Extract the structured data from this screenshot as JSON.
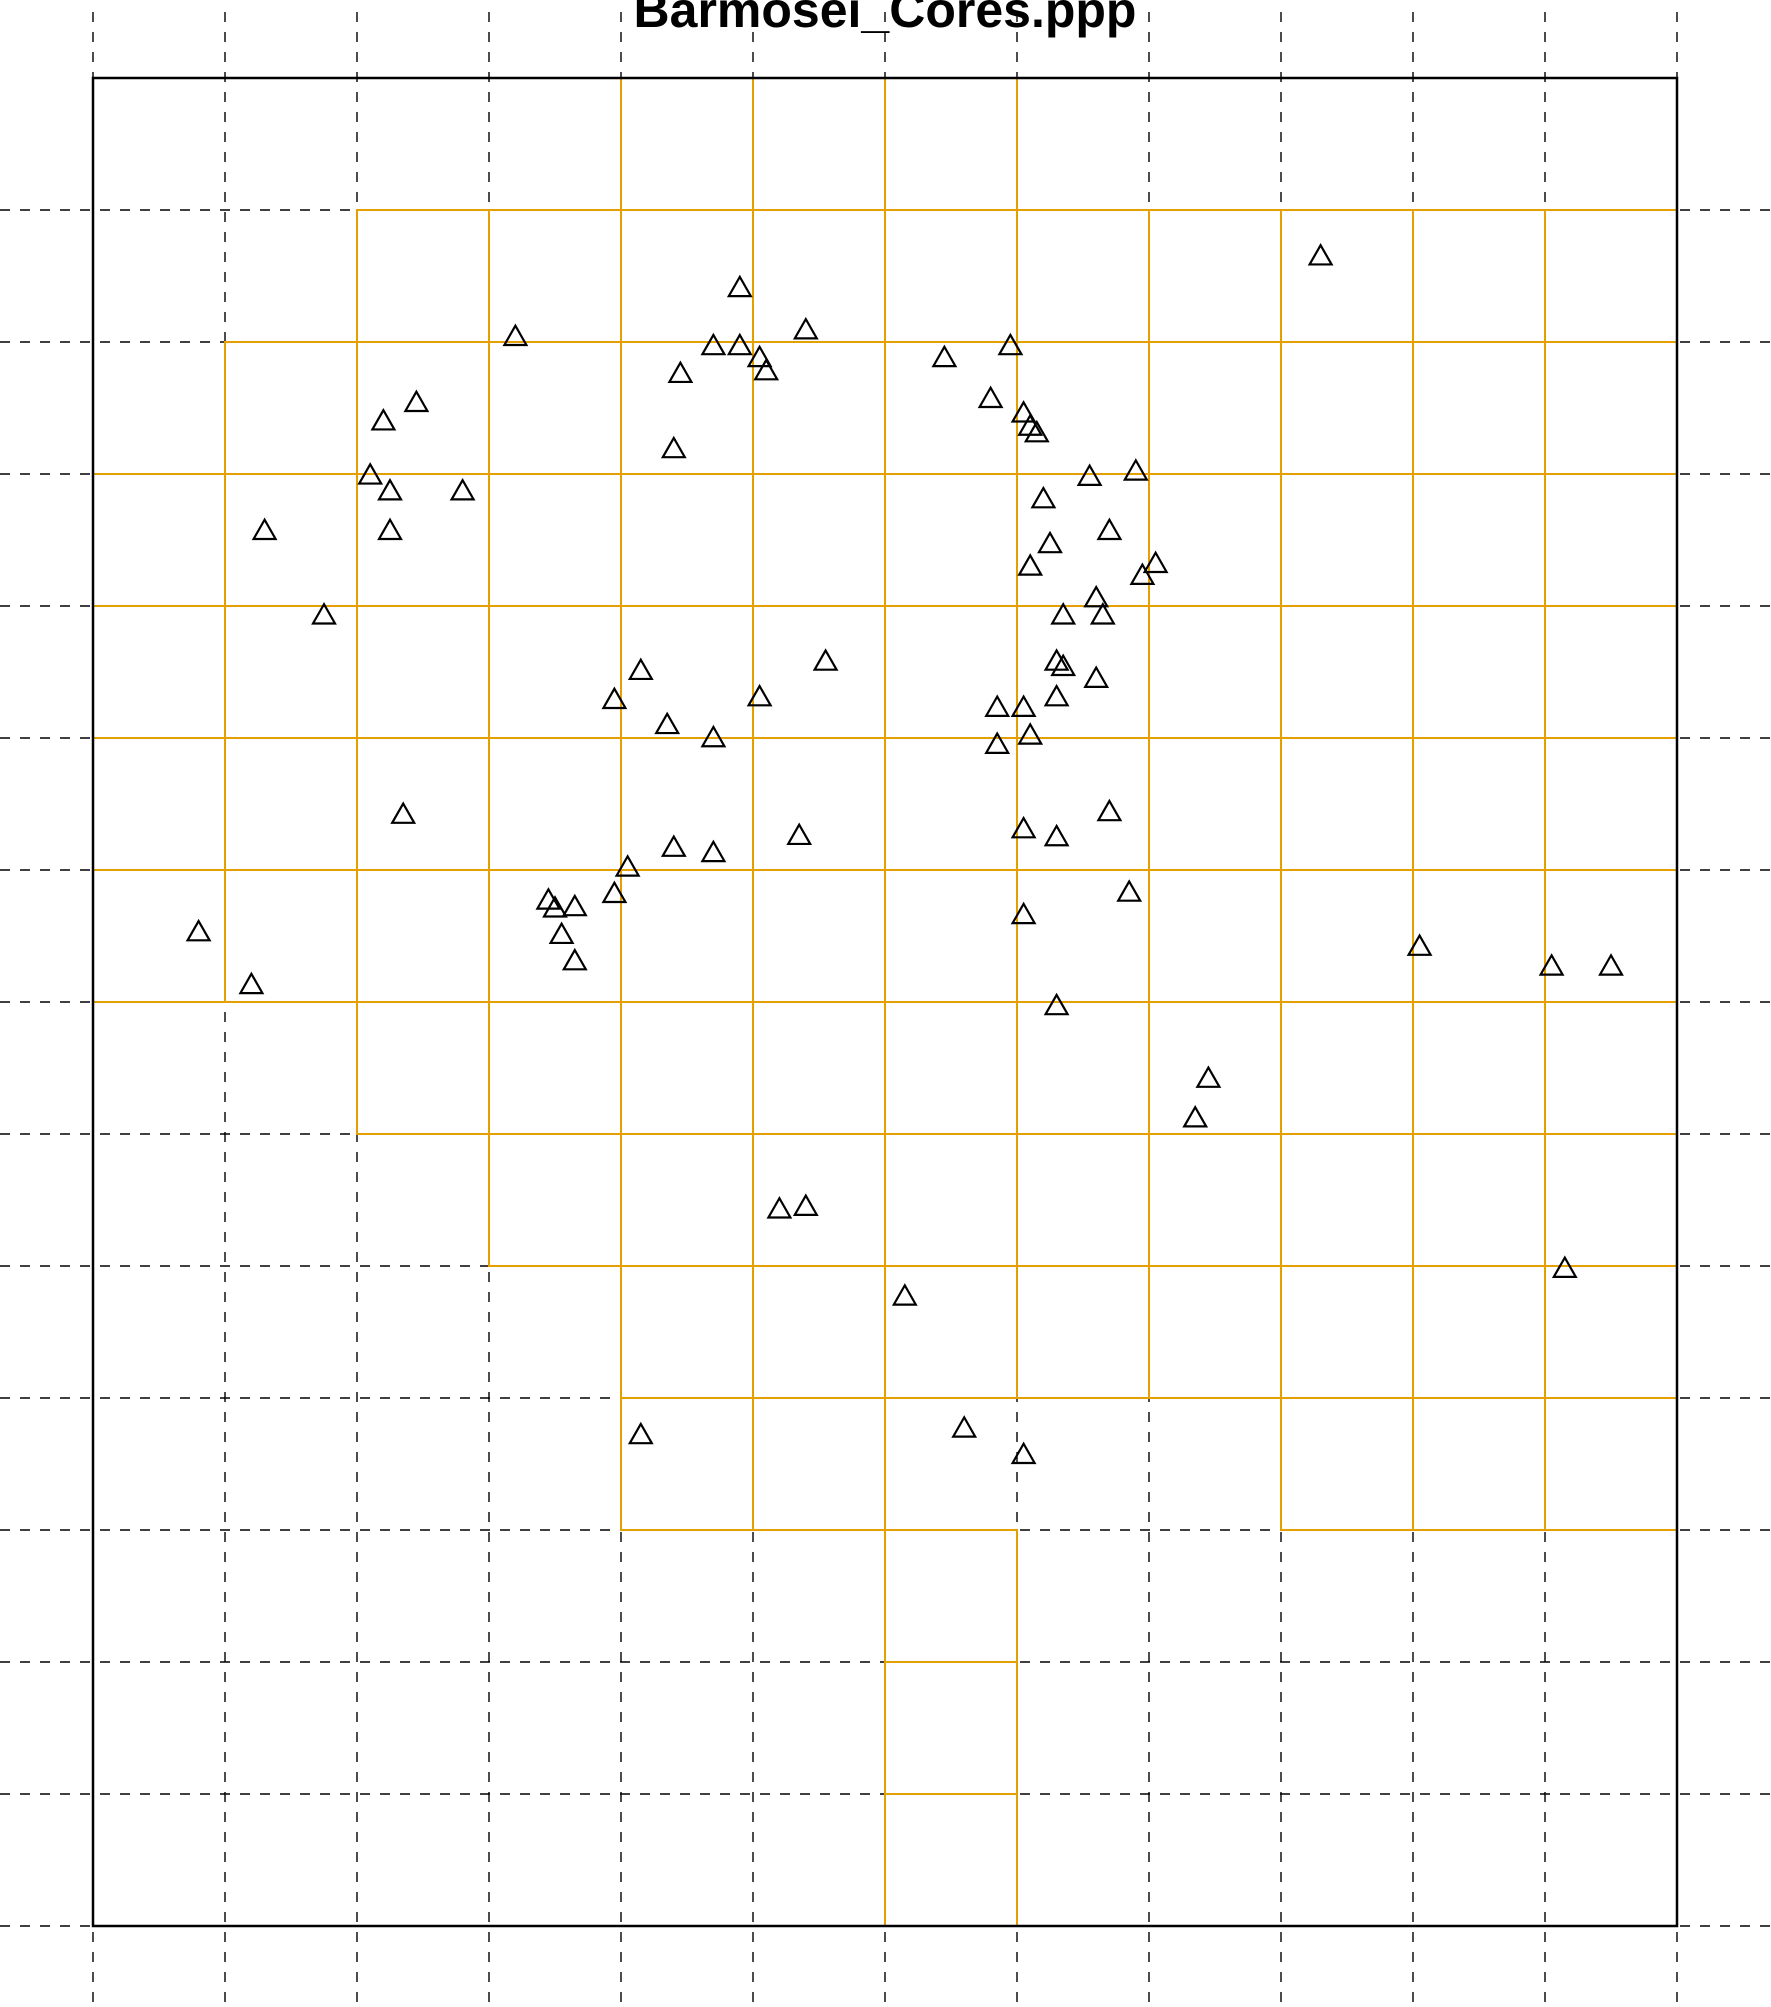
{
  "chart_data": {
    "type": "scatter",
    "title": "Barmosei_Cores.ppp",
    "xlabel": "",
    "ylabel": "",
    "xlim": [
      0,
      12
    ],
    "ylim": [
      0,
      14
    ],
    "grid": true,
    "marker": "triangle",
    "colors": {
      "points": "#000000",
      "quadrats": "#E69F00",
      "grid": "#000000",
      "window": "#000000"
    },
    "quadrats": [
      [
        4,
        13
      ],
      [
        5,
        13
      ],
      [
        6,
        13
      ],
      [
        2,
        12
      ],
      [
        3,
        12
      ],
      [
        4,
        12
      ],
      [
        5,
        12
      ],
      [
        6,
        12
      ],
      [
        7,
        12
      ],
      [
        8,
        12
      ],
      [
        9,
        12
      ],
      [
        10,
        12
      ],
      [
        11,
        12
      ],
      [
        1,
        11
      ],
      [
        2,
        11
      ],
      [
        3,
        11
      ],
      [
        4,
        11
      ],
      [
        5,
        11
      ],
      [
        6,
        11
      ],
      [
        7,
        11
      ],
      [
        8,
        11
      ],
      [
        9,
        11
      ],
      [
        10,
        11
      ],
      [
        11,
        11
      ],
      [
        0,
        10
      ],
      [
        1,
        10
      ],
      [
        2,
        10
      ],
      [
        3,
        10
      ],
      [
        4,
        10
      ],
      [
        5,
        10
      ],
      [
        6,
        10
      ],
      [
        7,
        10
      ],
      [
        8,
        10
      ],
      [
        9,
        10
      ],
      [
        10,
        10
      ],
      [
        11,
        10
      ],
      [
        0,
        9
      ],
      [
        1,
        9
      ],
      [
        2,
        9
      ],
      [
        3,
        9
      ],
      [
        4,
        9
      ],
      [
        5,
        9
      ],
      [
        6,
        9
      ],
      [
        7,
        9
      ],
      [
        8,
        9
      ],
      [
        9,
        9
      ],
      [
        10,
        9
      ],
      [
        11,
        9
      ],
      [
        0,
        8
      ],
      [
        1,
        8
      ],
      [
        2,
        8
      ],
      [
        3,
        8
      ],
      [
        4,
        8
      ],
      [
        5,
        8
      ],
      [
        6,
        8
      ],
      [
        7,
        8
      ],
      [
        8,
        8
      ],
      [
        9,
        8
      ],
      [
        10,
        8
      ],
      [
        11,
        8
      ],
      [
        0,
        7
      ],
      [
        1,
        7
      ],
      [
        2,
        7
      ],
      [
        3,
        7
      ],
      [
        4,
        7
      ],
      [
        5,
        7
      ],
      [
        6,
        7
      ],
      [
        7,
        7
      ],
      [
        8,
        7
      ],
      [
        9,
        7
      ],
      [
        10,
        7
      ],
      [
        11,
        7
      ],
      [
        2,
        6
      ],
      [
        3,
        6
      ],
      [
        4,
        6
      ],
      [
        5,
        6
      ],
      [
        6,
        6
      ],
      [
        7,
        6
      ],
      [
        8,
        6
      ],
      [
        9,
        6
      ],
      [
        10,
        6
      ],
      [
        11,
        6
      ],
      [
        3,
        5
      ],
      [
        4,
        5
      ],
      [
        5,
        5
      ],
      [
        6,
        5
      ],
      [
        7,
        5
      ],
      [
        8,
        5
      ],
      [
        9,
        5
      ],
      [
        10,
        5
      ],
      [
        11,
        5
      ],
      [
        4,
        4
      ],
      [
        5,
        4
      ],
      [
        6,
        4
      ],
      [
        7,
        4
      ],
      [
        8,
        4
      ],
      [
        9,
        4
      ],
      [
        10,
        4
      ],
      [
        11,
        4
      ],
      [
        4,
        3
      ],
      [
        5,
        3
      ],
      [
        9,
        3
      ],
      [
        10,
        3
      ],
      [
        11,
        3
      ],
      [
        6,
        2
      ],
      [
        6,
        1
      ],
      [
        6,
        0
      ]
    ],
    "points": [
      [
        9.3,
        12.65
      ],
      [
        4.9,
        12.41
      ],
      [
        3.2,
        12.04
      ],
      [
        4.7,
        11.97
      ],
      [
        4.9,
        11.97
      ],
      [
        5.4,
        12.09
      ],
      [
        5.05,
        11.88
      ],
      [
        5.1,
        11.78
      ],
      [
        4.45,
        11.76
      ],
      [
        6.45,
        11.88
      ],
      [
        6.95,
        11.97
      ],
      [
        2.45,
        11.54
      ],
      [
        2.2,
        11.4
      ],
      [
        6.8,
        11.57
      ],
      [
        7.05,
        11.46
      ],
      [
        7.1,
        11.36
      ],
      [
        7.15,
        11.31
      ],
      [
        4.4,
        11.19
      ],
      [
        7.9,
        11.02
      ],
      [
        7.55,
        10.98
      ],
      [
        2.1,
        10.99
      ],
      [
        2.25,
        10.87
      ],
      [
        2.8,
        10.87
      ],
      [
        7.2,
        10.81
      ],
      [
        1.3,
        10.57
      ],
      [
        2.25,
        10.57
      ],
      [
        7.7,
        10.57
      ],
      [
        7.25,
        10.47
      ],
      [
        7.1,
        10.3
      ],
      [
        8.05,
        10.32
      ],
      [
        7.95,
        10.23
      ],
      [
        1.75,
        9.93
      ],
      [
        7.6,
        10.06
      ],
      [
        7.35,
        9.93
      ],
      [
        7.65,
        9.93
      ],
      [
        7.3,
        9.58
      ],
      [
        7.35,
        9.54
      ],
      [
        5.55,
        9.58
      ],
      [
        4.15,
        9.51
      ],
      [
        3.95,
        9.29
      ],
      [
        5.05,
        9.31
      ],
      [
        7.3,
        9.31
      ],
      [
        7.6,
        9.45
      ],
      [
        6.85,
        9.23
      ],
      [
        7.05,
        9.23
      ],
      [
        4.35,
        9.1
      ],
      [
        4.7,
        9.0
      ],
      [
        6.85,
        8.95
      ],
      [
        7.1,
        9.02
      ],
      [
        2.35,
        8.42
      ],
      [
        7.7,
        8.44
      ],
      [
        5.35,
        8.26
      ],
      [
        7.05,
        8.31
      ],
      [
        7.3,
        8.25
      ],
      [
        4.4,
        8.17
      ],
      [
        4.7,
        8.13
      ],
      [
        4.05,
        8.02
      ],
      [
        3.95,
        7.82
      ],
      [
        3.45,
        7.77
      ],
      [
        3.5,
        7.71
      ],
      [
        3.65,
        7.72
      ],
      [
        3.55,
        7.51
      ],
      [
        7.05,
        7.66
      ],
      [
        7.85,
        7.83
      ],
      [
        0.8,
        7.53
      ],
      [
        3.65,
        7.31
      ],
      [
        10.05,
        7.42
      ],
      [
        11.05,
        7.27
      ],
      [
        11.5,
        7.27
      ],
      [
        1.2,
        7.13
      ],
      [
        7.3,
        6.97
      ],
      [
        8.45,
        6.42
      ],
      [
        8.35,
        6.12
      ],
      [
        5.2,
        5.43
      ],
      [
        5.4,
        5.45
      ],
      [
        6.15,
        4.77
      ],
      [
        11.15,
        4.98
      ],
      [
        4.15,
        3.72
      ],
      [
        6.6,
        3.77
      ],
      [
        7.05,
        3.57
      ]
    ]
  }
}
